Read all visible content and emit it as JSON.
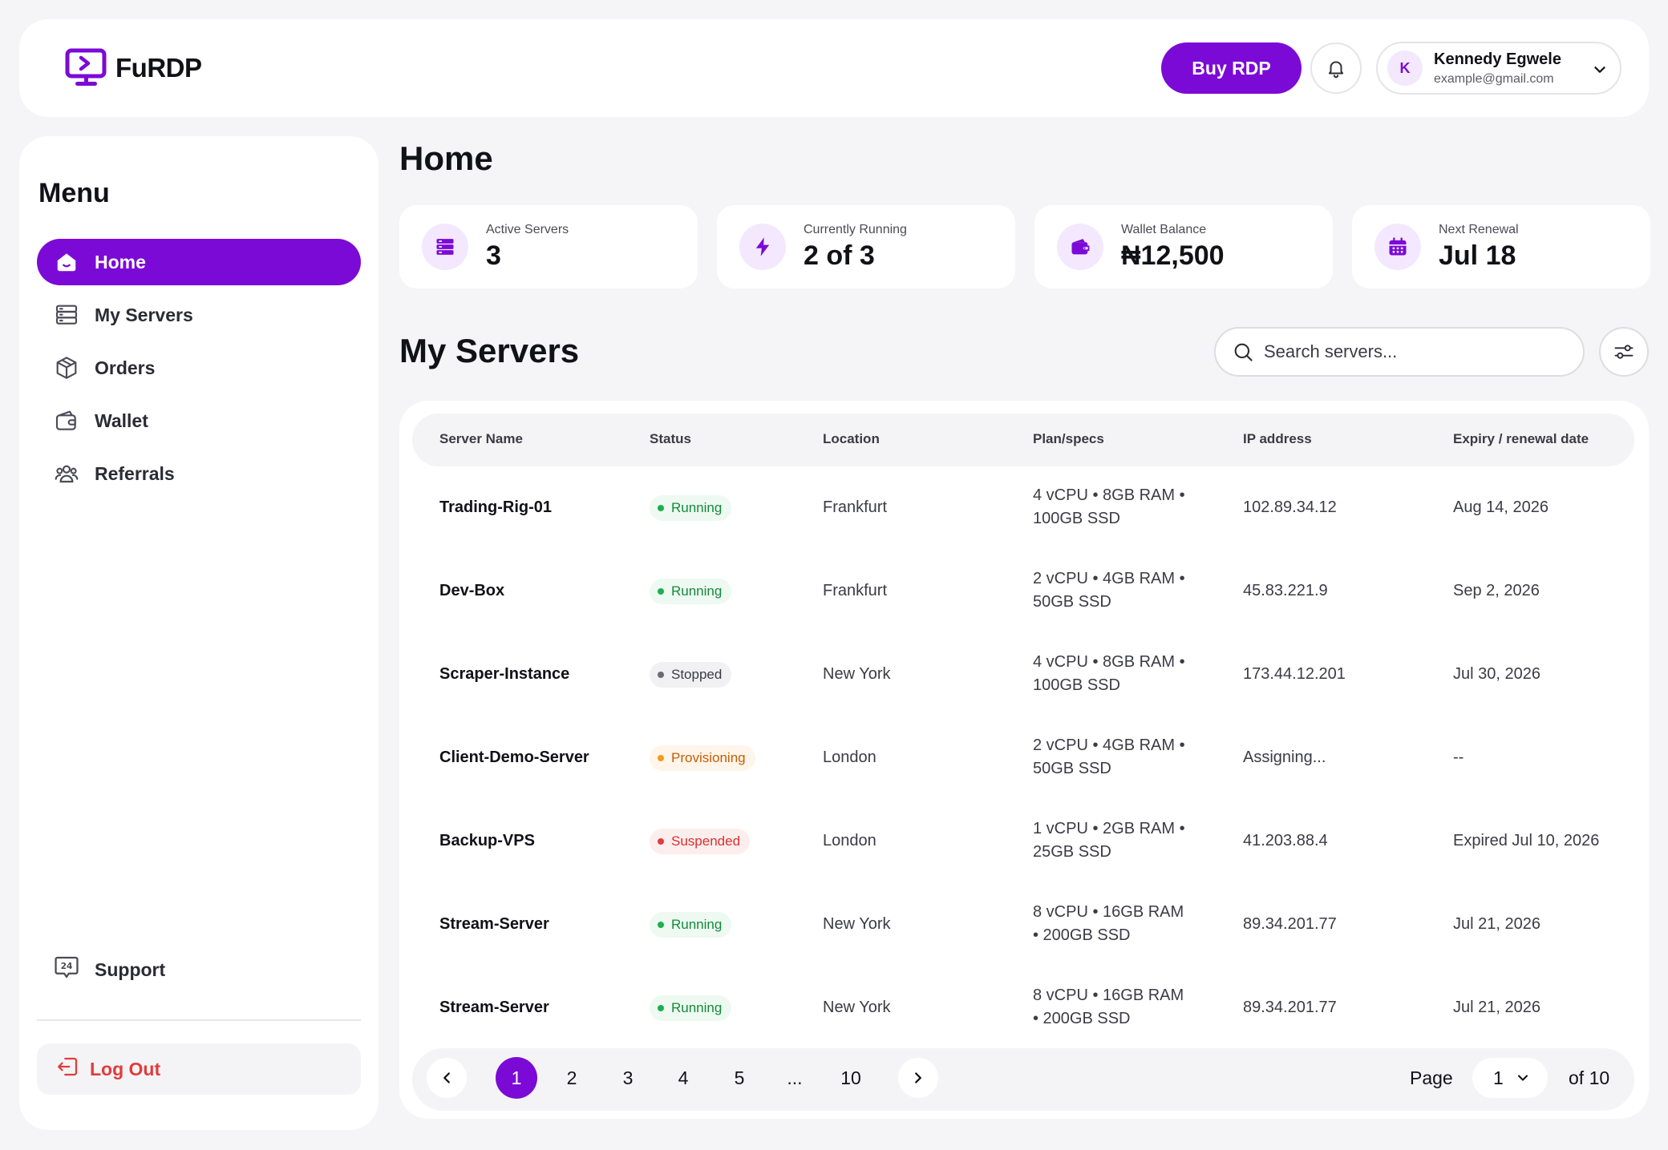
{
  "app": {
    "name": "FuRDP"
  },
  "header": {
    "buy_label": "Buy RDP",
    "user": {
      "initial": "K",
      "name": "Kennedy Egwele",
      "email": "example@gmail.com"
    }
  },
  "sidebar": {
    "title": "Menu",
    "items": [
      {
        "label": "Home",
        "icon": "home-icon",
        "active": true
      },
      {
        "label": "My Servers",
        "icon": "servers-icon",
        "active": false
      },
      {
        "label": "Orders",
        "icon": "box-icon",
        "active": false
      },
      {
        "label": "Wallet",
        "icon": "wallet-icon",
        "active": false
      },
      {
        "label": "Referrals",
        "icon": "users-icon",
        "active": false
      }
    ],
    "support_label": "Support",
    "logout_label": "Log Out"
  },
  "main": {
    "title": "Home",
    "stats": [
      {
        "label": "Active Servers",
        "value": "3",
        "icon": "servers-icon"
      },
      {
        "label": "Currently Running",
        "value": "2 of 3",
        "icon": "bolt-icon"
      },
      {
        "label": "Wallet Balance",
        "value": "₦12,500",
        "icon": "wallet-icon"
      },
      {
        "label": "Next Renewal",
        "value": "Jul 18",
        "icon": "calendar-icon"
      }
    ],
    "servers_title": "My Servers",
    "search_placeholder": "Search servers...",
    "table": {
      "columns": [
        "Server Name",
        "Status",
        "Location",
        "Plan/specs",
        "IP address",
        "Expiry / renewal date"
      ],
      "rows": [
        {
          "name": "Trading-Rig-01",
          "status": "Running",
          "location": "Frankfurt",
          "plan_line1": "4 vCPU • 8GB RAM •",
          "plan_line2": "100GB SSD",
          "ip": "102.89.34.12",
          "expiry": "Aug 14, 2026"
        },
        {
          "name": "Dev-Box",
          "status": "Running",
          "location": "Frankfurt",
          "plan_line1": "2 vCPU • 4GB RAM •",
          "plan_line2": "50GB SSD",
          "ip": "45.83.221.9",
          "expiry": "Sep 2, 2026"
        },
        {
          "name": "Scraper-Instance",
          "status": "Stopped",
          "location": "New York",
          "plan_line1": "4 vCPU • 8GB RAM •",
          "plan_line2": "100GB SSD",
          "ip": "173.44.12.201",
          "expiry": "Jul 30, 2026"
        },
        {
          "name": "Client-Demo-Server",
          "status": "Provisioning",
          "location": "London",
          "plan_line1": "2 vCPU • 4GB RAM •",
          "plan_line2": "50GB SSD",
          "ip": "Assigning...",
          "expiry": "--"
        },
        {
          "name": "Backup-VPS",
          "status": "Suspended",
          "location": "London",
          "plan_line1": "1 vCPU • 2GB RAM •",
          "plan_line2": "25GB SSD",
          "ip": "41.203.88.4",
          "expiry": "Expired Jul 10, 2026"
        },
        {
          "name": "Stream-Server",
          "status": "Running",
          "location": "New York",
          "plan_line1": "8 vCPU • 16GB RAM",
          "plan_line2": "• 200GB SSD",
          "ip": "89.34.201.77",
          "expiry": "Jul 21, 2026"
        },
        {
          "name": "Stream-Server",
          "status": "Running",
          "location": "New York",
          "plan_line1": "8 vCPU • 16GB RAM",
          "plan_line2": "• 200GB SSD",
          "ip": "89.34.201.77",
          "expiry": "Jul 21, 2026"
        }
      ]
    },
    "pagination": {
      "pages": [
        "1",
        "2",
        "3",
        "4",
        "5",
        "...",
        "10"
      ],
      "current": "1",
      "page_label": "Page",
      "selected_page": "1",
      "of_label": "of 10"
    }
  },
  "colors": {
    "accent": "#7c0ad6",
    "accent_light": "#f3e8fd",
    "danger": "#e23b3b",
    "success": "#1cb04e",
    "warning": "#f59a1b"
  }
}
